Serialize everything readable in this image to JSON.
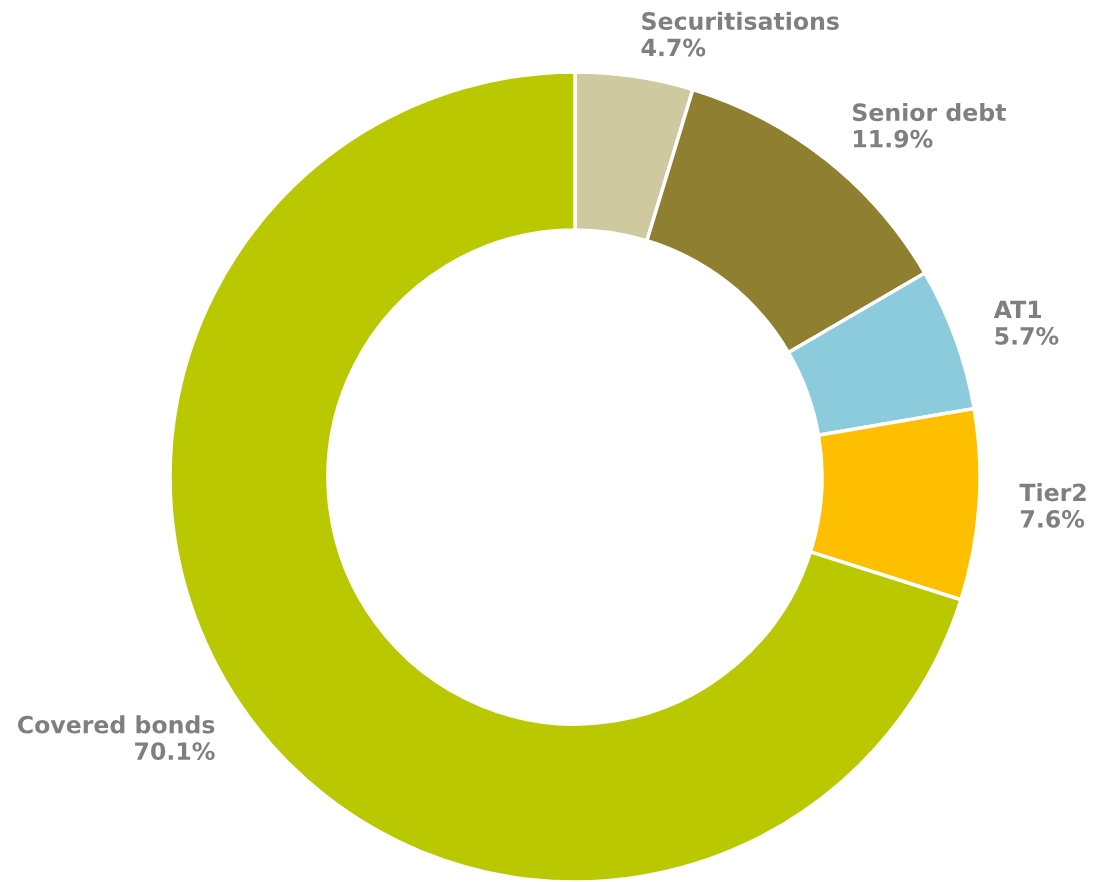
{
  "chart_data": {
    "type": "donut",
    "categories": [
      "Securitisations",
      "Senior debt",
      "AT1",
      "Tier2",
      "Covered bonds"
    ],
    "values": [
      4.7,
      11.9,
      5.7,
      7.6,
      70.1
    ],
    "value_labels": [
      "4.7%",
      "11.9%",
      "5.7%",
      "7.6%",
      "70.1%"
    ],
    "colors": [
      "#cfc9a0",
      "#8f7f30",
      "#8ccbdc",
      "#fdbf00",
      "#b9c800"
    ],
    "legend": false
  }
}
